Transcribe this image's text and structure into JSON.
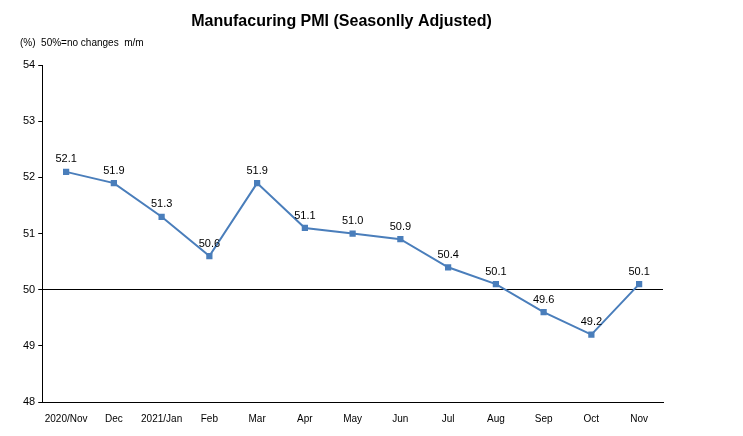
{
  "chart_data": {
    "type": "line",
    "title": "Manufacuring PMI (Seasonlly Adjusted)",
    "subtitle": "(%)  50%=no changes  m/m",
    "categories": [
      "2020/Nov",
      "Dec",
      "2021/Jan",
      "Feb",
      "Mar",
      "Apr",
      "May",
      "Jun",
      "Jul",
      "Aug",
      "Sep",
      "Oct",
      "Nov"
    ],
    "values": [
      52.1,
      51.9,
      51.3,
      50.6,
      51.9,
      51.1,
      51.0,
      50.9,
      50.4,
      50.1,
      49.6,
      49.2,
      50.1
    ],
    "value_labels": [
      "52.1",
      "51.9",
      "51.3",
      "50.6",
      "51.9",
      "51.1",
      "51.0",
      "50.9",
      "50.4",
      "50.1",
      "49.6",
      "49.2",
      "50.1"
    ],
    "baseline": 50,
    "color": "#4a7ebb",
    "marker": "square",
    "line_style": "solid",
    "ylim": [
      48,
      54
    ],
    "yticks": [
      48,
      49,
      50,
      51,
      52,
      53,
      54
    ],
    "grid": false,
    "data_labels": true
  }
}
